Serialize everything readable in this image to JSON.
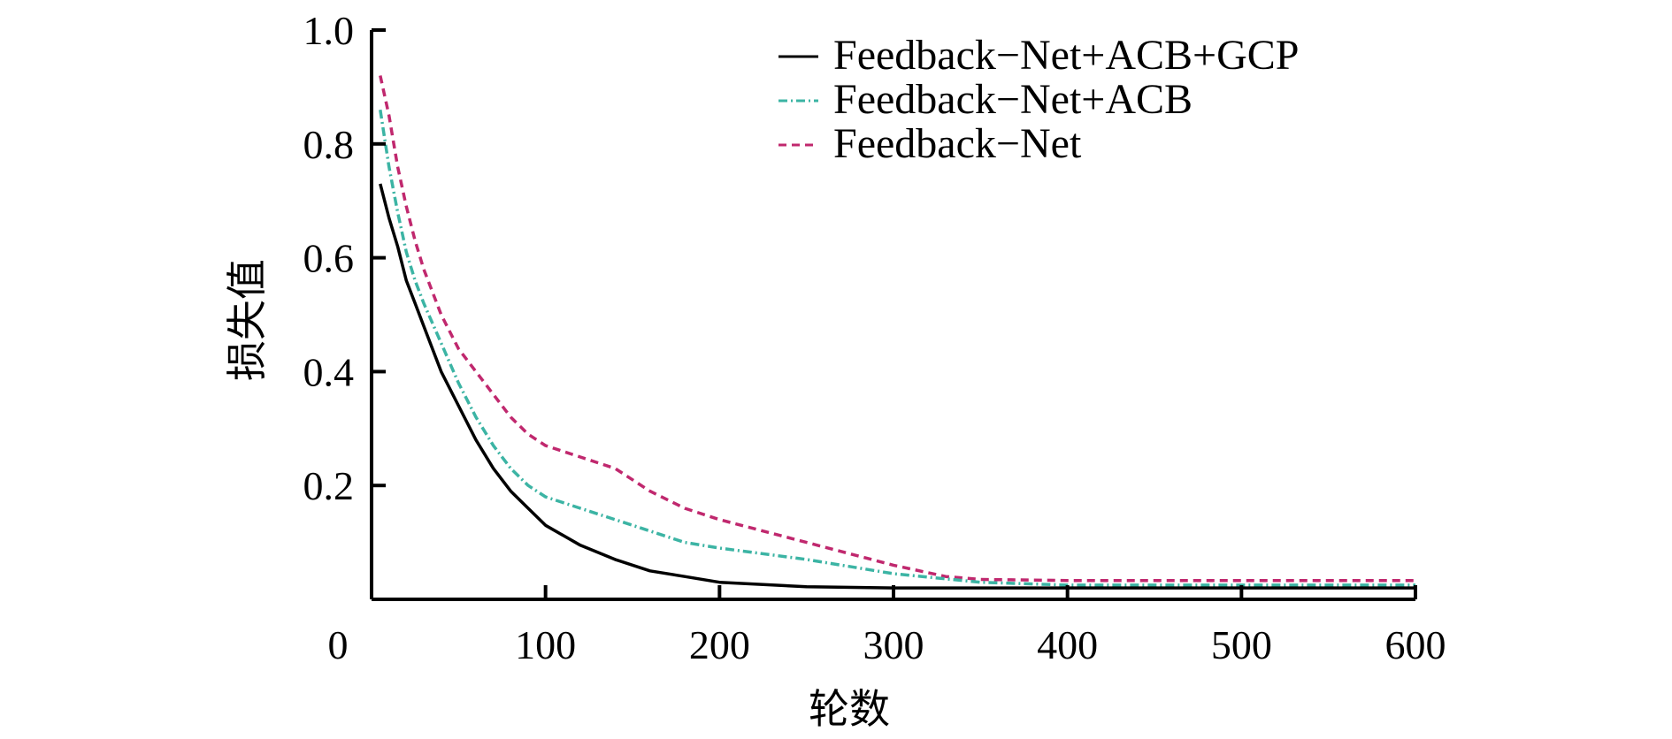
{
  "chart_data": {
    "type": "line",
    "xlabel": "轮数",
    "ylabel": "损失值",
    "xlim": [
      0,
      600
    ],
    "ylim": [
      0,
      1.0
    ],
    "x_ticks": [
      0,
      100,
      200,
      300,
      400,
      500,
      600
    ],
    "x_tick_labels": [
      "0",
      "100",
      "200",
      "300",
      "400",
      "500",
      "600"
    ],
    "y_ticks": [
      0.2,
      0.4,
      0.6,
      0.8,
      1.0
    ],
    "y_tick_labels": [
      "0.2",
      "0.4",
      "0.6",
      "0.8",
      "1.0"
    ],
    "grid": false,
    "legend_position": "top-right",
    "series": [
      {
        "name": "Feedback−Net+ACB+GCP",
        "color": "#000000",
        "dash": "solid",
        "x": [
          5,
          10,
          15,
          20,
          25,
          30,
          40,
          50,
          60,
          70,
          80,
          90,
          100,
          120,
          140,
          160,
          180,
          200,
          250,
          300,
          350,
          400,
          450,
          500,
          550,
          600
        ],
        "y": [
          0.73,
          0.67,
          0.62,
          0.56,
          0.52,
          0.48,
          0.4,
          0.34,
          0.28,
          0.23,
          0.19,
          0.16,
          0.13,
          0.095,
          0.07,
          0.05,
          0.04,
          0.03,
          0.022,
          0.02,
          0.02,
          0.02,
          0.02,
          0.02,
          0.02,
          0.02
        ]
      },
      {
        "name": "Feedback−Net+ACB",
        "color": "#3cb4a4",
        "dash": "dash-dot",
        "x": [
          5,
          10,
          15,
          20,
          25,
          30,
          40,
          50,
          60,
          70,
          80,
          90,
          100,
          120,
          140,
          160,
          180,
          200,
          250,
          300,
          350,
          400,
          450,
          500,
          550,
          600
        ],
        "y": [
          0.86,
          0.76,
          0.68,
          0.61,
          0.56,
          0.52,
          0.45,
          0.38,
          0.32,
          0.27,
          0.23,
          0.2,
          0.18,
          0.16,
          0.14,
          0.12,
          0.1,
          0.09,
          0.07,
          0.045,
          0.03,
          0.025,
          0.025,
          0.025,
          0.025,
          0.025
        ]
      },
      {
        "name": "Feedback−Net",
        "color": "#c0286e",
        "dash": "dashed",
        "x": [
          5,
          10,
          15,
          20,
          25,
          30,
          40,
          50,
          60,
          70,
          80,
          90,
          100,
          120,
          140,
          160,
          180,
          200,
          250,
          300,
          330,
          350,
          400,
          450,
          500,
          550,
          600
        ],
        "y": [
          0.92,
          0.85,
          0.76,
          0.69,
          0.63,
          0.58,
          0.5,
          0.44,
          0.4,
          0.36,
          0.32,
          0.29,
          0.27,
          0.25,
          0.23,
          0.19,
          0.16,
          0.14,
          0.1,
          0.06,
          0.04,
          0.035,
          0.033,
          0.033,
          0.033,
          0.033,
          0.033
        ]
      }
    ]
  }
}
